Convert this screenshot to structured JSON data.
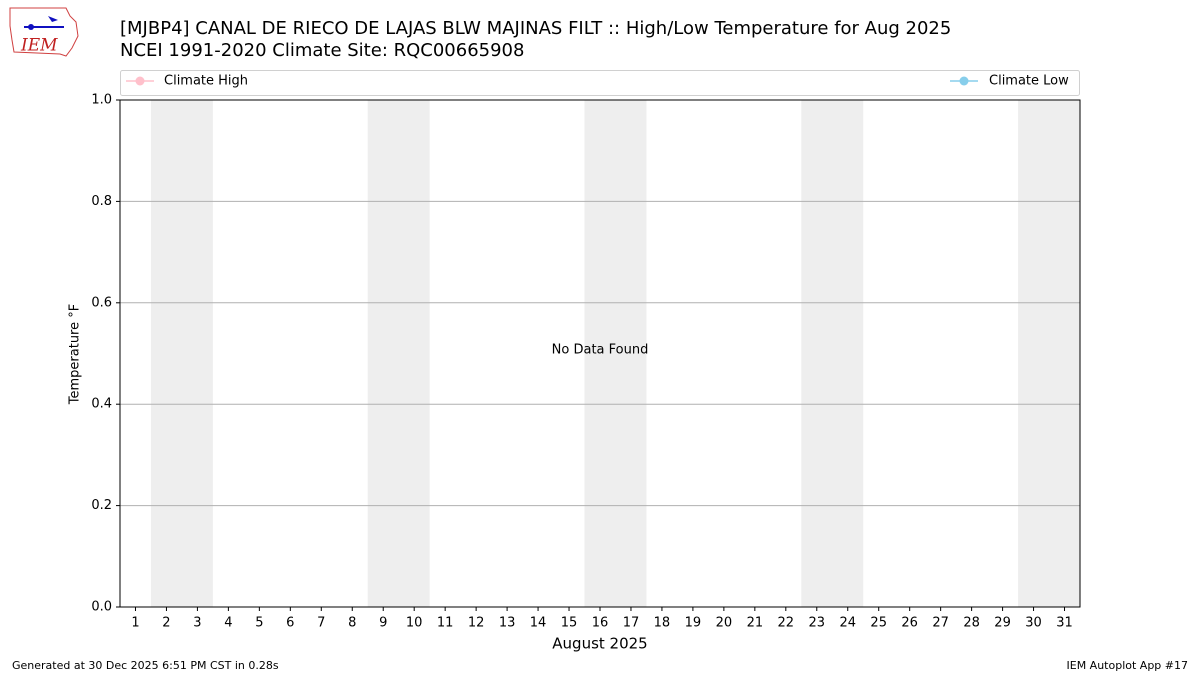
{
  "logo_text": "IEM",
  "chart_data": {
    "type": "line",
    "title": "[MJBP4] CANAL DE RIECO DE LAJAS BLW MAJINAS FILT :: High/Low Temperature for Aug 2025",
    "subtitle": "NCEI 1991-2020 Climate Site: RQC00665908",
    "xlabel": "August 2025",
    "ylabel": "Temperature °F",
    "annotation": "No Data Found",
    "series": [
      {
        "name": "Climate High",
        "color": "#ffc0cb",
        "values": []
      },
      {
        "name": "Climate Low",
        "color": "#87ceeb",
        "values": []
      }
    ],
    "xlim": [
      0.5,
      31.5
    ],
    "xticks": [
      1,
      2,
      3,
      4,
      5,
      6,
      7,
      8,
      9,
      10,
      11,
      12,
      13,
      14,
      15,
      16,
      17,
      18,
      19,
      20,
      21,
      22,
      23,
      24,
      25,
      26,
      27,
      28,
      29,
      30,
      31
    ],
    "ylim": [
      0,
      1
    ],
    "yticks": [
      {
        "value": 0,
        "label": "0.0"
      },
      0.2,
      0.4,
      0.6,
      0.8,
      {
        "value": 1,
        "label": "1.0"
      }
    ],
    "grid": true,
    "weekend_spans": [
      [
        1.5,
        3.5
      ],
      [
        8.5,
        10.5
      ],
      [
        15.5,
        17.5
      ],
      [
        22.5,
        24.5
      ],
      [
        29.5,
        31.5
      ]
    ],
    "weekend_color": "#eeeeee",
    "footer_left": "Generated at 30 Dec 2025 6:51 PM CST in 0.28s",
    "footer_right": "IEM Autoplot App #17"
  }
}
